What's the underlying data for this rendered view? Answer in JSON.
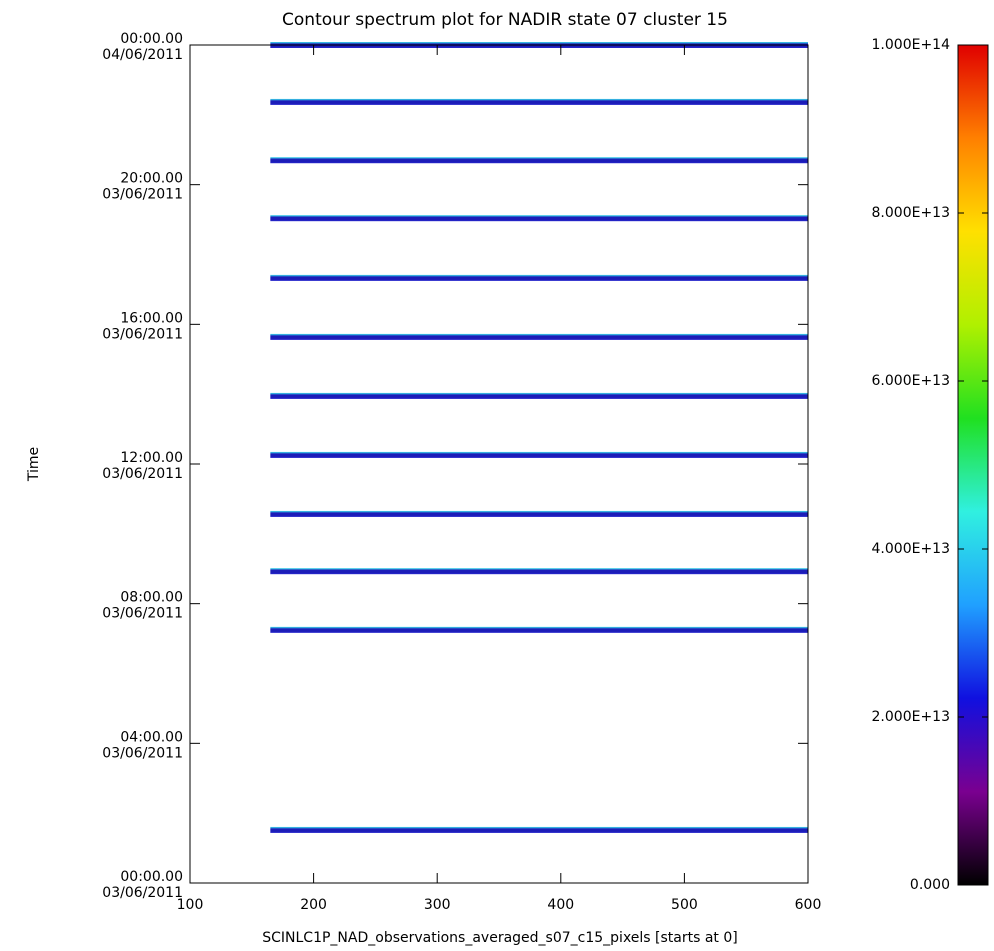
{
  "chart_data": {
    "type": "stripes",
    "title": "Contour spectrum plot for NADIR state 07 cluster 15",
    "x_label": "SCINLC1P_NAD_observations_averaged_s07_c15_pixels [starts at 0]",
    "y_label": "Time",
    "xlim": [
      100,
      600
    ],
    "xticks": [
      100,
      200,
      300,
      400,
      500,
      600
    ],
    "ylim": [
      0,
      24
    ],
    "yticks": [
      {
        "value": 0,
        "label": [
          "00:00.00",
          "03/06/2011"
        ]
      },
      {
        "value": 4,
        "label": [
          "04:00.00",
          "03/06/2011"
        ]
      },
      {
        "value": 8,
        "label": [
          "08:00.00",
          "03/06/2011"
        ]
      },
      {
        "value": 12,
        "label": [
          "12:00.00",
          "03/06/2011"
        ]
      },
      {
        "value": 16,
        "label": [
          "16:00.00",
          "03/06/2011"
        ]
      },
      {
        "value": 20,
        "label": [
          "20:00.00",
          "03/06/2011"
        ]
      },
      {
        "value": 24,
        "label": [
          "00:00.00",
          "04/06/2011"
        ]
      }
    ],
    "stripe_times": [
      24.0,
      22.37,
      20.7,
      19.04,
      17.33,
      15.64,
      13.95,
      12.26,
      10.57,
      8.93,
      7.25,
      1.52
    ],
    "stripe_xrange": [
      165,
      600
    ],
    "stripe_colors": [
      "#40e8f0",
      "#1c1cb8",
      "#2a2ad0"
    ],
    "colorbar_lim": [
      0,
      100000000000000
    ],
    "colorbar_ticks": [
      {
        "value": 0,
        "label": "0.000"
      },
      {
        "value": 20000000000000,
        "label": "2.000E+13"
      },
      {
        "value": 40000000000000,
        "label": "4.000E+13"
      },
      {
        "value": 60000000000000,
        "label": "6.000E+13"
      },
      {
        "value": 80000000000000,
        "label": "8.000E+13"
      },
      {
        "value": 100000000000000,
        "label": "1.000E+14"
      }
    ],
    "colormap": [
      "#000000",
      "#7a0090",
      "#1010e0",
      "#20a0ff",
      "#30f0e0",
      "#20e020",
      "#b0f000",
      "#ffe000",
      "#ff8000",
      "#e00000"
    ]
  }
}
